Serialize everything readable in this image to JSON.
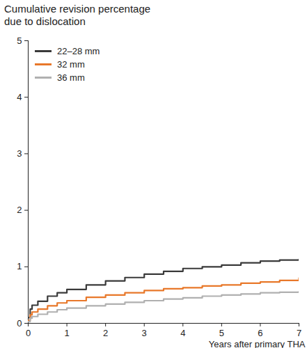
{
  "chart_data": {
    "type": "line",
    "title": "Cumulative revision percentage\ndue to dislocation",
    "x_label": "Years after primary THA",
    "x": [
      0,
      0.05,
      0.1,
      0.25,
      0.5,
      0.75,
      1,
      1.5,
      2,
      2.5,
      3,
      3.5,
      4,
      4.5,
      5,
      5.5,
      6,
      6.5,
      7
    ],
    "series": [
      {
        "name": "22–28 mm",
        "color": "#3a3a3a",
        "values": [
          0.1,
          0.25,
          0.32,
          0.39,
          0.48,
          0.54,
          0.6,
          0.68,
          0.75,
          0.81,
          0.87,
          0.92,
          0.97,
          1.0,
          1.03,
          1.07,
          1.1,
          1.12,
          1.13
        ]
      },
      {
        "name": "32 mm",
        "color": "#e8782a",
        "values": [
          0.05,
          0.15,
          0.2,
          0.25,
          0.31,
          0.36,
          0.4,
          0.46,
          0.5,
          0.54,
          0.58,
          0.61,
          0.63,
          0.66,
          0.68,
          0.71,
          0.73,
          0.76,
          0.8
        ]
      },
      {
        "name": "36 mm",
        "color": "#b0b0b0",
        "values": [
          0.03,
          0.09,
          0.12,
          0.16,
          0.2,
          0.24,
          0.27,
          0.31,
          0.34,
          0.37,
          0.4,
          0.43,
          0.45,
          0.48,
          0.5,
          0.52,
          0.54,
          0.55,
          0.56
        ]
      }
    ],
    "xlim": [
      0,
      7
    ],
    "xticks": [
      0,
      1,
      2,
      3,
      4,
      5,
      6,
      7
    ],
    "ylim": [
      0,
      5
    ],
    "yticks": [
      0,
      1,
      2,
      3,
      4,
      5
    ],
    "grid": false,
    "legend": "top-left",
    "line_style": "step"
  }
}
